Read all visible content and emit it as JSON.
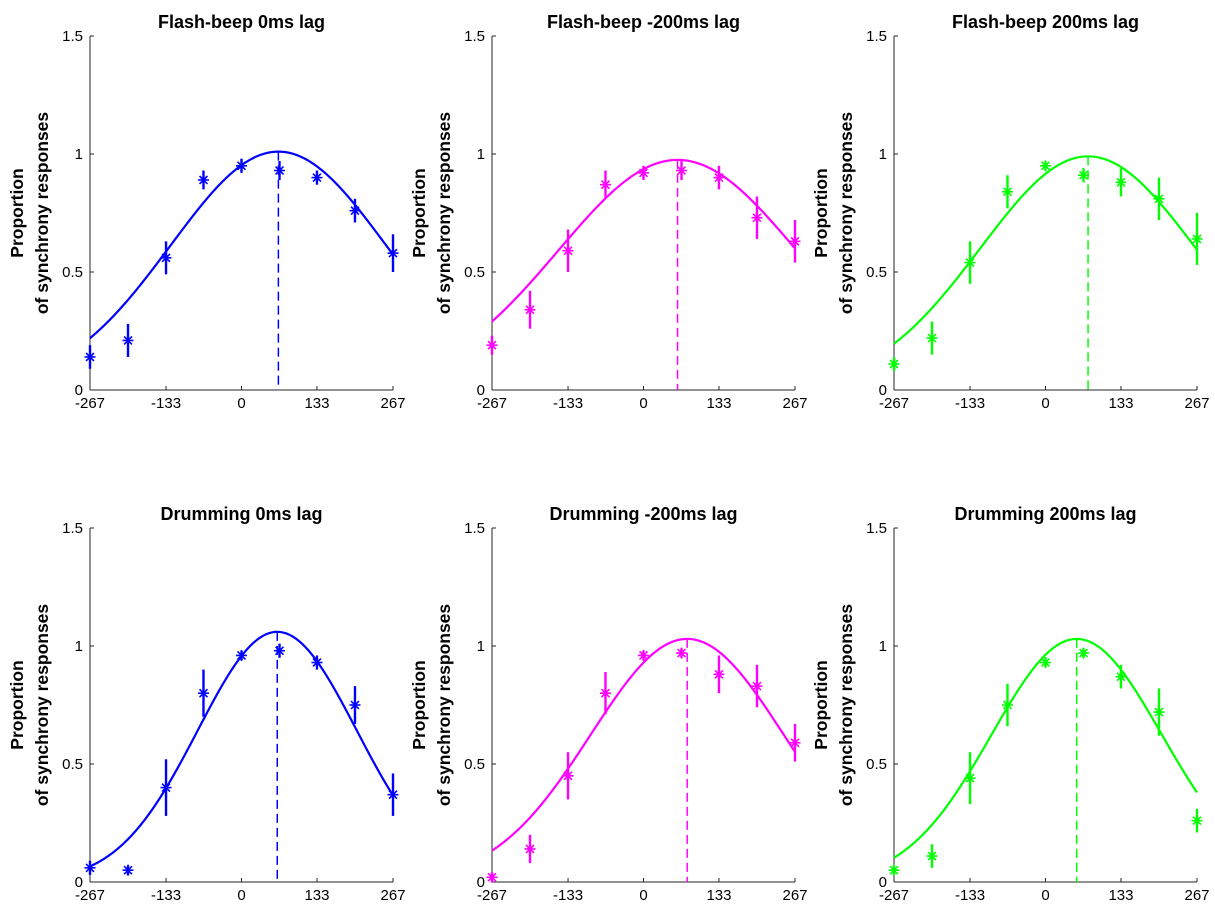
{
  "figure": {
    "background": "#ffffff"
  },
  "chart_data": [
    {
      "type": "scatter",
      "title": "Flash-beep 0ms lag",
      "ylabel_lines": [
        "Proportion",
        "of synchrony responses"
      ],
      "xticks": [
        -267,
        -133,
        0,
        133,
        267
      ],
      "xticklabels": [
        "-267",
        "-133",
        "0",
        "133",
        "267"
      ],
      "yticks": [
        0,
        0.5,
        1,
        1.5
      ],
      "yticklabels": [
        "0",
        "0.5",
        "1",
        "1.5"
      ],
      "xlim": [
        -267,
        267
      ],
      "ylim": [
        0,
        1.5
      ],
      "color": "#0000ff",
      "grid": false,
      "legend": "none",
      "points": {
        "x": [
          -267,
          -200,
          -133,
          -67,
          0,
          67,
          133,
          200,
          267
        ],
        "y": [
          0.14,
          0.21,
          0.56,
          0.89,
          0.95,
          0.93,
          0.9,
          0.76,
          0.58
        ],
        "err": [
          0.05,
          0.07,
          0.07,
          0.04,
          0.03,
          0.04,
          0.03,
          0.05,
          0.08
        ]
      },
      "fit": {
        "peak_x": 65,
        "peak_y": 1.01,
        "sigma": 190
      }
    },
    {
      "type": "scatter",
      "title": "Flash-beep -200ms lag",
      "ylabel_lines": [
        "Proportion",
        "of synchrony responses"
      ],
      "xticks": [
        -267,
        -133,
        0,
        133,
        267
      ],
      "xticklabels": [
        "-267",
        "-133",
        "0",
        "133",
        "267"
      ],
      "yticks": [
        0,
        0.5,
        1,
        1.5
      ],
      "yticklabels": [
        "0",
        "0.5",
        "1",
        "1.5"
      ],
      "xlim": [
        -267,
        267
      ],
      "ylim": [
        0,
        1.5
      ],
      "color": "#ff00ff",
      "grid": false,
      "legend": "none",
      "points": {
        "x": [
          -267,
          -200,
          -133,
          -67,
          0,
          67,
          133,
          200,
          267
        ],
        "y": [
          0.19,
          0.34,
          0.59,
          0.87,
          0.92,
          0.93,
          0.9,
          0.73,
          0.63
        ],
        "err": [
          0.04,
          0.08,
          0.09,
          0.06,
          0.03,
          0.04,
          0.05,
          0.09,
          0.09
        ]
      },
      "fit": {
        "peak_x": 60,
        "peak_y": 0.975,
        "sigma": 210
      }
    },
    {
      "type": "scatter",
      "title": "Flash-beep 200ms lag",
      "ylabel_lines": [
        "Proportion",
        "of synchrony responses"
      ],
      "xticks": [
        -267,
        -133,
        0,
        133,
        267
      ],
      "xticklabels": [
        "-267",
        "-133",
        "0",
        "133",
        "267"
      ],
      "yticks": [
        0,
        0.5,
        1,
        1.5
      ],
      "yticklabels": [
        "0",
        "0.5",
        "1",
        "1.5"
      ],
      "xlim": [
        -267,
        267
      ],
      "ylim": [
        0,
        1.5
      ],
      "color": "#00ff00",
      "grid": false,
      "legend": "none",
      "points": {
        "x": [
          -267,
          -200,
          -133,
          -67,
          0,
          67,
          133,
          200,
          267
        ],
        "y": [
          0.11,
          0.22,
          0.54,
          0.84,
          0.95,
          0.91,
          0.88,
          0.81,
          0.64
        ],
        "err": [
          0.03,
          0.07,
          0.09,
          0.07,
          0.02,
          0.03,
          0.06,
          0.09,
          0.11
        ]
      },
      "fit": {
        "peak_x": 75,
        "peak_y": 0.99,
        "sigma": 190
      }
    },
    {
      "type": "scatter",
      "title": "Drumming 0ms lag",
      "ylabel_lines": [
        "Proportion",
        "of synchrony responses"
      ],
      "xticks": [
        -267,
        -133,
        0,
        133,
        267
      ],
      "xticklabels": [
        "-267",
        "-133",
        "0",
        "133",
        "267"
      ],
      "yticks": [
        0,
        0.5,
        1,
        1.5
      ],
      "yticklabels": [
        "0",
        "0.5",
        "1",
        "1.5"
      ],
      "xlim": [
        -267,
        267
      ],
      "ylim": [
        0,
        1.5
      ],
      "color": "#0000ff",
      "grid": false,
      "legend": "none",
      "points": {
        "x": [
          -267,
          -200,
          -133,
          -67,
          0,
          67,
          133,
          200,
          267
        ],
        "y": [
          0.06,
          0.05,
          0.4,
          0.8,
          0.96,
          0.98,
          0.93,
          0.75,
          0.37
        ],
        "err": [
          0.03,
          0.02,
          0.12,
          0.1,
          0.02,
          0.03,
          0.03,
          0.08,
          0.09
        ]
      },
      "fit": {
        "peak_x": 63,
        "peak_y": 1.06,
        "sigma": 140
      }
    },
    {
      "type": "scatter",
      "title": "Drumming -200ms lag",
      "ylabel_lines": [
        "Proportion",
        "of synchrony responses"
      ],
      "xticks": [
        -267,
        -133,
        0,
        133,
        267
      ],
      "xticklabels": [
        "-267",
        "-133",
        "0",
        "133",
        "267"
      ],
      "yticks": [
        0,
        0.5,
        1,
        1.5
      ],
      "yticklabels": [
        "0",
        "0.5",
        "1",
        "1.5"
      ],
      "xlim": [
        -267,
        267
      ],
      "ylim": [
        0,
        1.5
      ],
      "color": "#ff00ff",
      "grid": false,
      "legend": "none",
      "points": {
        "x": [
          -267,
          -200,
          -133,
          -67,
          0,
          67,
          133,
          200,
          267
        ],
        "y": [
          0.02,
          0.14,
          0.45,
          0.8,
          0.96,
          0.97,
          0.88,
          0.83,
          0.59
        ],
        "err": [
          0.02,
          0.06,
          0.1,
          0.09,
          0.02,
          0.02,
          0.08,
          0.09,
          0.08
        ]
      },
      "fit": {
        "peak_x": 77,
        "peak_y": 1.03,
        "sigma": 170
      }
    },
    {
      "type": "scatter",
      "title": "Drumming 200ms lag",
      "ylabel_lines": [
        "Proportion",
        "of synchrony responses"
      ],
      "xticks": [
        -267,
        -133,
        0,
        133,
        267
      ],
      "xticklabels": [
        "-267",
        "-133",
        "0",
        "133",
        "267"
      ],
      "yticks": [
        0,
        0.5,
        1,
        1.5
      ],
      "yticklabels": [
        "0",
        "0.5",
        "1",
        "1.5"
      ],
      "xlim": [
        -267,
        267
      ],
      "ylim": [
        0,
        1.5
      ],
      "color": "#00ff00",
      "grid": false,
      "legend": "none",
      "points": {
        "x": [
          -267,
          -200,
          -133,
          -67,
          0,
          67,
          133,
          200,
          267
        ],
        "y": [
          0.05,
          0.11,
          0.44,
          0.75,
          0.93,
          0.97,
          0.87,
          0.72,
          0.26
        ],
        "err": [
          0.02,
          0.05,
          0.11,
          0.09,
          0.02,
          0.02,
          0.05,
          0.1,
          0.05
        ]
      },
      "fit": {
        "peak_x": 55,
        "peak_y": 1.03,
        "sigma": 150
      }
    }
  ]
}
